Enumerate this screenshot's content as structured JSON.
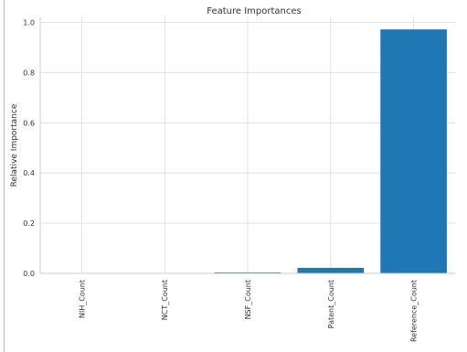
{
  "chart_data": {
    "type": "bar",
    "title": "Feature Importances",
    "xlabel": "",
    "ylabel": "Relative Importance",
    "categories": [
      "NIH_Count",
      "NCT_Count",
      "NSF_Count",
      "Patent_Count",
      "Reference_Count"
    ],
    "values": [
      0.0,
      0.0,
      0.004,
      0.022,
      0.972
    ],
    "ylim": [
      0.0,
      1.02
    ],
    "yticks": [
      0.0,
      0.2,
      0.4,
      0.6,
      0.8,
      1.0
    ],
    "ytick_labels": [
      "0.0",
      "0.2",
      "0.4",
      "0.6",
      "0.8",
      "1.0"
    ],
    "grid": true,
    "legend": "none",
    "colors": {
      "bar": "#1f77b4",
      "grid": "#dcdcdc",
      "spine": "#cccccc",
      "text": "#333333"
    }
  }
}
